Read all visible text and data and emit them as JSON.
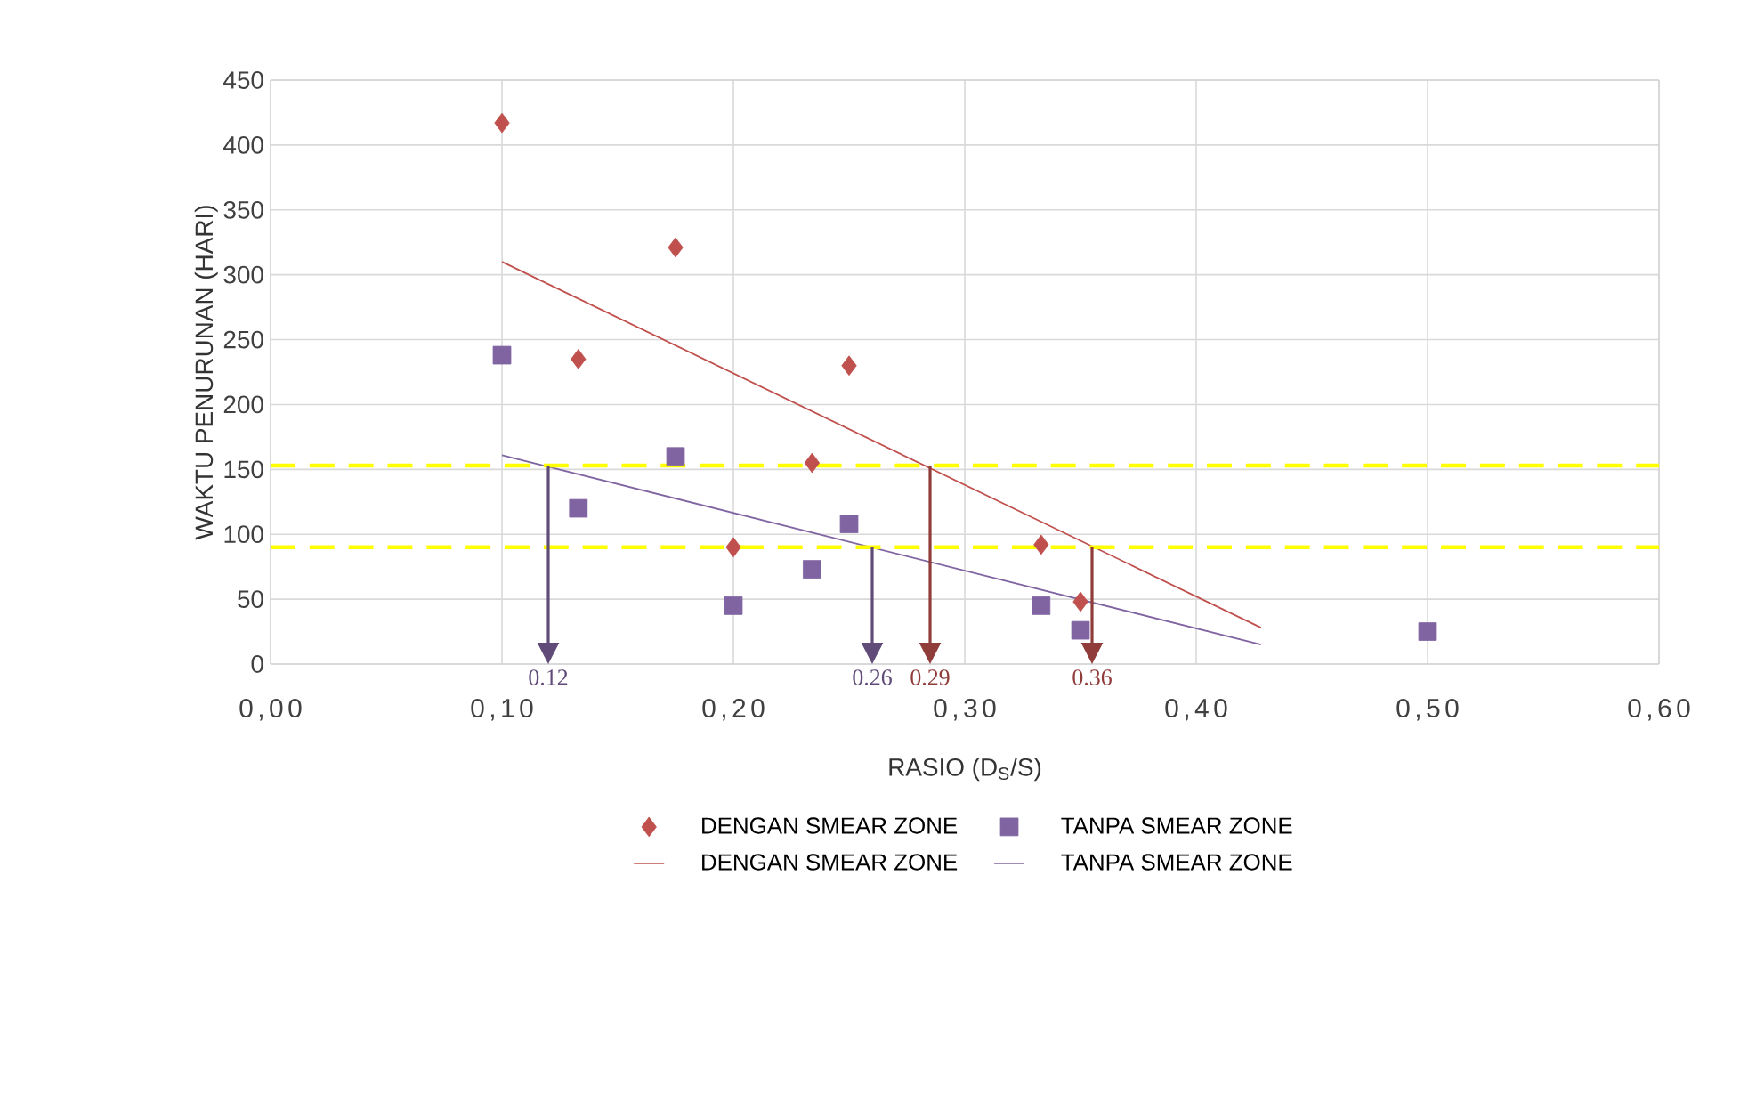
{
  "chart_data": {
    "type": "scatter",
    "xlabel": "RASIO (D$_{S}$/S)",
    "ylabel": "WAKTU PENURUNAN (HARI)",
    "xlim": [
      0,
      0.6
    ],
    "ylim": [
      0,
      450
    ],
    "xticks": [
      {
        "value": 0,
        "label": "0,00"
      },
      {
        "value": 0.1,
        "label": "0,10"
      },
      {
        "value": 0.2,
        "label": "0,20"
      },
      {
        "value": 0.3,
        "label": "0,30"
      },
      {
        "value": 0.4,
        "label": "0,40"
      },
      {
        "value": 0.5,
        "label": "0,50"
      },
      {
        "value": 0.6,
        "label": "0,60"
      }
    ],
    "yticks": [
      0,
      50,
      100,
      150,
      200,
      250,
      300,
      350,
      400,
      450
    ],
    "grid": true,
    "legend": "bottom",
    "series": [
      {
        "name": "DENGAN SMEAR ZONE",
        "marker": "diamond",
        "color": "#c0504d",
        "x": [
          0.1,
          0.133,
          0.175,
          0.2,
          0.234,
          0.25,
          0.333,
          0.35
        ],
        "values": [
          417,
          235,
          321,
          90,
          155,
          230,
          92,
          48
        ]
      },
      {
        "name": "TANPA SMEAR ZONE",
        "marker": "square",
        "color": "#8064a2",
        "x": [
          0.1,
          0.133,
          0.175,
          0.2,
          0.234,
          0.25,
          0.333,
          0.35,
          0.5
        ],
        "values": [
          238,
          120,
          160,
          45,
          73,
          108,
          45,
          26,
          25
        ]
      },
      {
        "name": "DENGAN SMEAR ZONE",
        "type": "line",
        "marker": "none",
        "color": "#c0504d",
        "x": [
          0.1,
          0.428
        ],
        "values": [
          310,
          28
        ]
      },
      {
        "name": "TANPA SMEAR ZONE",
        "type": "line",
        "marker": "none",
        "color": "#8064a2",
        "x": [
          0.1,
          0.428
        ],
        "values": [
          161,
          15
        ]
      }
    ],
    "ref_lines": [
      {
        "axis": "y",
        "value": 153,
        "color": "#ffff00",
        "line_style": "dashed"
      },
      {
        "axis": "y",
        "value": 90,
        "color": "#ffff00",
        "line_style": "dashed"
      }
    ],
    "annotations": [
      {
        "text": "0.12",
        "x": 0.12,
        "y": 153
      },
      {
        "text": "0.26",
        "x": 0.26,
        "y": 90
      },
      {
        "text": "0.29",
        "x": 0.285,
        "y": 153
      },
      {
        "text": "0.36",
        "x": 0.355,
        "y": 90
      }
    ]
  }
}
